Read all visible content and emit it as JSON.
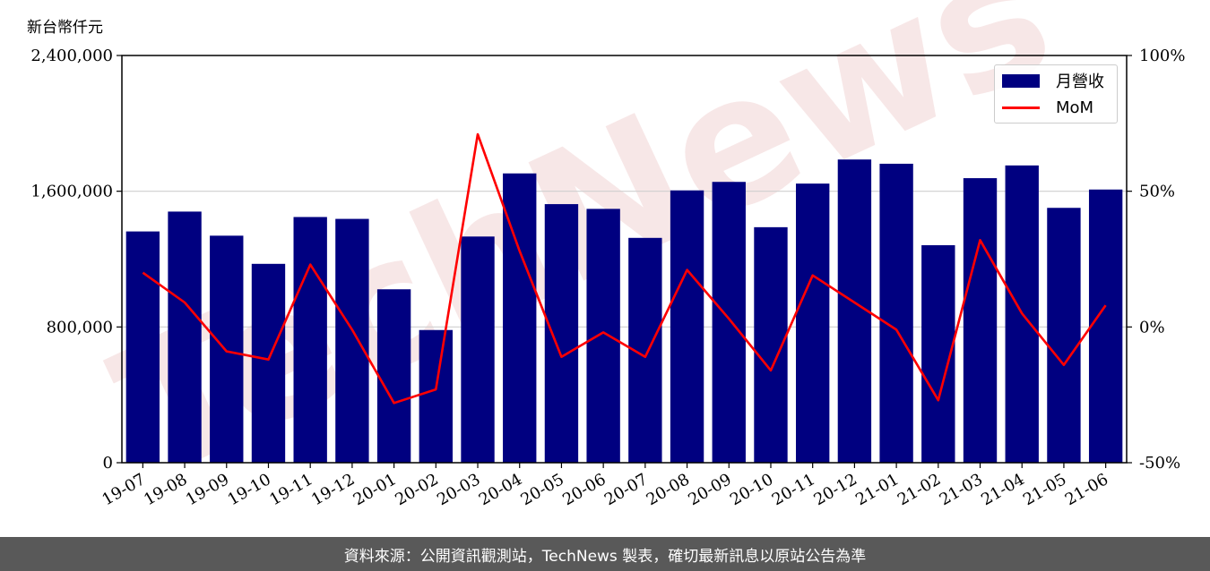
{
  "unit_label": "新台幣仟元",
  "footer_text": "資料來源：公開資訊觀測站，TechNews 製表，確切最新訊息以原站公告為準",
  "watermark_text": "TechNews",
  "colors": {
    "bar": "#000080",
    "line": "#ff0000",
    "footer_bg": "#595959"
  },
  "chart_data": {
    "type": "bar",
    "categories": [
      "19-07",
      "19-08",
      "19-09",
      "19-10",
      "19-11",
      "19-12",
      "20-01",
      "20-02",
      "20-03",
      "20-04",
      "20-05",
      "20-06",
      "20-07",
      "20-08",
      "20-09",
      "20-10",
      "20-11",
      "20-12",
      "21-01",
      "21-02",
      "21-03",
      "21-04",
      "21-05",
      "21-06"
    ],
    "series": [
      {
        "name": "月營收",
        "type": "bar",
        "axis": "left",
        "values": [
          1363000,
          1480000,
          1338000,
          1172000,
          1448000,
          1437000,
          1022000,
          782000,
          1333000,
          1705000,
          1524000,
          1496000,
          1325000,
          1605000,
          1655000,
          1388000,
          1645000,
          1787000,
          1762000,
          1282000,
          1677000,
          1752000,
          1502000,
          1610000
        ]
      },
      {
        "name": "MoM",
        "type": "line",
        "axis": "right",
        "values": [
          20,
          9,
          -9,
          -12,
          23,
          -1,
          -28,
          -23,
          71,
          28,
          -11,
          -2,
          -11,
          21,
          3,
          -16,
          19,
          9,
          -1,
          -27,
          32,
          5,
          -14,
          8
        ]
      }
    ],
    "y_left": {
      "ylim": [
        0,
        2400000
      ],
      "ticks": [
        "0",
        "800,000",
        "1,600,000",
        "2,400,000"
      ],
      "tick_values": [
        0,
        800000,
        1600000,
        2400000
      ]
    },
    "y_right": {
      "ylim": [
        -50,
        100
      ],
      "ticks": [
        "-50%",
        "0%",
        "50%",
        "100%"
      ],
      "tick_values": [
        -50,
        0,
        50,
        100
      ]
    },
    "grid": "horizontal",
    "legend_position": "top-right"
  }
}
